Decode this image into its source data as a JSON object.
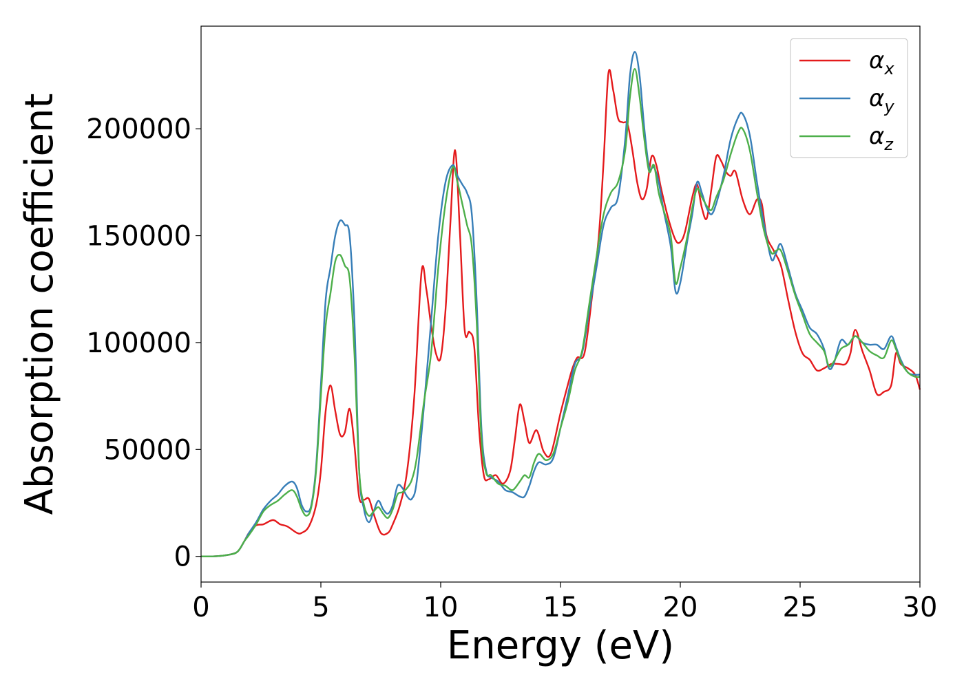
{
  "chart_data": {
    "type": "line",
    "title": "",
    "xlabel": "Energy (eV)",
    "ylabel": "Absorption coefficient",
    "xlim": [
      0,
      30
    ],
    "ylim": [
      -12000,
      248000
    ],
    "xticks": [
      0,
      5,
      10,
      15,
      20,
      25,
      30
    ],
    "yticks": [
      0,
      50000,
      100000,
      150000,
      200000
    ],
    "grid": false,
    "legend_position": "top-right",
    "series": [
      {
        "name": "α",
        "subscript": "x",
        "color": "#e41a1c",
        "x": [
          0,
          0.5,
          1.0,
          1.5,
          1.8,
          2.0,
          2.3,
          2.6,
          3.0,
          3.3,
          3.6,
          4.0,
          4.2,
          4.5,
          4.8,
          5.0,
          5.2,
          5.4,
          5.6,
          5.8,
          6.0,
          6.2,
          6.4,
          6.6,
          6.8,
          7.0,
          7.2,
          7.5,
          7.8,
          8.0,
          8.3,
          8.6,
          8.9,
          9.2,
          9.4,
          9.6,
          9.8,
          10.0,
          10.2,
          10.4,
          10.6,
          10.8,
          11.0,
          11.2,
          11.4,
          11.6,
          11.8,
          12.0,
          12.3,
          12.6,
          12.9,
          13.1,
          13.3,
          13.5,
          13.7,
          14.0,
          14.3,
          14.6,
          15.0,
          15.3,
          15.5,
          15.7,
          16.0,
          16.3,
          16.6,
          16.8,
          17.0,
          17.2,
          17.4,
          17.6,
          17.8,
          18.0,
          18.2,
          18.4,
          18.6,
          18.8,
          19.0,
          19.2,
          19.5,
          19.8,
          20.0,
          20.2,
          20.5,
          20.7,
          20.9,
          21.1,
          21.3,
          21.5,
          21.7,
          21.9,
          22.1,
          22.3,
          22.6,
          22.9,
          23.2,
          23.4,
          23.6,
          23.9,
          24.2,
          24.5,
          24.8,
          25.1,
          25.4,
          25.7,
          26.0,
          26.3,
          26.6,
          26.9,
          27.1,
          27.3,
          27.6,
          27.9,
          28.2,
          28.5,
          28.8,
          29.0,
          29.2,
          29.5,
          29.8,
          30.0
        ],
        "y": [
          0,
          0,
          500,
          2000,
          7000,
          11000,
          14500,
          15000,
          17000,
          15000,
          14000,
          11000,
          11000,
          14000,
          24000,
          40000,
          68000,
          80000,
          68000,
          57000,
          58000,
          69000,
          52000,
          27500,
          26500,
          27000,
          20000,
          11000,
          11000,
          15000,
          24000,
          40000,
          75000,
          133000,
          125000,
          108000,
          95000,
          93000,
          115000,
          155000,
          190000,
          152000,
          106000,
          105000,
          98000,
          60000,
          38000,
          36000,
          38000,
          34000,
          40000,
          55000,
          71000,
          63000,
          53000,
          59000,
          49000,
          48000,
          67000,
          80000,
          88000,
          93000,
          95000,
          120000,
          150000,
          185000,
          226000,
          218000,
          205000,
          203000,
          202000,
          190000,
          175000,
          167000,
          172000,
          187000,
          183000,
          172000,
          158000,
          148000,
          147000,
          152000,
          168000,
          174000,
          163000,
          158000,
          172000,
          187000,
          185000,
          180000,
          178000,
          180000,
          167000,
          160000,
          167000,
          165000,
          150000,
          143000,
          136000,
          120000,
          105000,
          95000,
          92000,
          87000,
          88000,
          90000,
          90000,
          90000,
          95000,
          106000,
          96000,
          87000,
          76000,
          77000,
          80000,
          95000,
          90000,
          88000,
          85000,
          78000
        ]
      },
      {
        "name": "α",
        "subscript": "y",
        "color": "#377eb8",
        "x": [
          0,
          0.5,
          1.0,
          1.5,
          1.8,
          2.0,
          2.3,
          2.6,
          2.9,
          3.2,
          3.5,
          3.8,
          4.0,
          4.2,
          4.4,
          4.6,
          4.8,
          5.0,
          5.2,
          5.4,
          5.6,
          5.8,
          6.0,
          6.2,
          6.4,
          6.6,
          6.8,
          7.0,
          7.2,
          7.4,
          7.6,
          7.8,
          8.0,
          8.2,
          8.4,
          8.6,
          8.8,
          9.0,
          9.3,
          9.6,
          9.9,
          10.2,
          10.5,
          10.7,
          10.9,
          11.1,
          11.3,
          11.5,
          11.7,
          11.9,
          12.1,
          12.4,
          12.7,
          13.0,
          13.3,
          13.5,
          13.7,
          13.9,
          14.1,
          14.4,
          14.7,
          15.0,
          15.3,
          15.6,
          15.9,
          16.2,
          16.5,
          16.8,
          17.1,
          17.4,
          17.7,
          17.9,
          18.1,
          18.3,
          18.5,
          18.7,
          18.9,
          19.1,
          19.3,
          19.6,
          19.8,
          20.0,
          20.3,
          20.5,
          20.7,
          20.9,
          21.1,
          21.3,
          21.5,
          21.8,
          22.1,
          22.4,
          22.6,
          22.9,
          23.2,
          23.5,
          23.8,
          24.0,
          24.2,
          24.5,
          24.8,
          25.1,
          25.4,
          25.7,
          26.0,
          26.2,
          26.4,
          26.7,
          27.0,
          27.3,
          27.6,
          27.9,
          28.2,
          28.5,
          28.8,
          29.0,
          29.2,
          29.5,
          29.8,
          30.0
        ],
        "y": [
          0,
          0,
          500,
          2000,
          7000,
          11000,
          16000,
          22000,
          26000,
          29000,
          33000,
          35000,
          32000,
          24000,
          21000,
          24000,
          42000,
          80000,
          120000,
          135000,
          150000,
          157000,
          155000,
          150000,
          110000,
          40000,
          22000,
          16000,
          21000,
          26000,
          22000,
          20000,
          24000,
          33000,
          32000,
          28000,
          27000,
          35000,
          70000,
          110000,
          150000,
          175000,
          183000,
          178000,
          174000,
          170000,
          160000,
          120000,
          60000,
          40000,
          37000,
          35000,
          31000,
          30000,
          28000,
          28000,
          33000,
          40000,
          44000,
          43000,
          46000,
          60000,
          75000,
          90000,
          95000,
          115000,
          135000,
          155000,
          163000,
          168000,
          195000,
          225000,
          236000,
          225000,
          200000,
          182000,
          182000,
          175000,
          162000,
          145000,
          124000,
          128000,
          148000,
          160000,
          175000,
          170000,
          163000,
          160000,
          165000,
          178000,
          195000,
          205000,
          207000,
          197000,
          175000,
          155000,
          139000,
          142000,
          146000,
          135000,
          123000,
          115000,
          107000,
          104000,
          97000,
          88000,
          90000,
          101000,
          99000,
          103000,
          100000,
          99000,
          99000,
          97000,
          103000,
          98000,
          92000,
          86000,
          85000,
          85000
        ]
      },
      {
        "name": "α",
        "subscript": "z",
        "color": "#4daf4a",
        "x": [
          0,
          0.5,
          1.0,
          1.5,
          1.8,
          2.0,
          2.3,
          2.6,
          2.9,
          3.2,
          3.5,
          3.8,
          4.0,
          4.2,
          4.4,
          4.6,
          4.8,
          5.0,
          5.2,
          5.4,
          5.6,
          5.8,
          6.0,
          6.2,
          6.4,
          6.6,
          6.8,
          7.0,
          7.2,
          7.4,
          7.6,
          7.8,
          8.0,
          8.2,
          8.4,
          8.6,
          8.8,
          9.0,
          9.3,
          9.6,
          9.9,
          10.2,
          10.5,
          10.7,
          10.9,
          11.1,
          11.3,
          11.5,
          11.7,
          11.9,
          12.1,
          12.4,
          12.7,
          13.0,
          13.3,
          13.5,
          13.7,
          13.9,
          14.1,
          14.4,
          14.7,
          15.0,
          15.3,
          15.6,
          15.9,
          16.2,
          16.5,
          16.8,
          17.1,
          17.4,
          17.7,
          17.9,
          18.1,
          18.3,
          18.5,
          18.7,
          18.9,
          19.1,
          19.3,
          19.6,
          19.8,
          20.0,
          20.3,
          20.5,
          20.7,
          20.9,
          21.1,
          21.3,
          21.5,
          21.8,
          22.1,
          22.4,
          22.6,
          22.9,
          23.2,
          23.5,
          23.8,
          24.0,
          24.2,
          24.5,
          24.8,
          25.1,
          25.4,
          25.7,
          26.0,
          26.2,
          26.4,
          26.7,
          27.0,
          27.3,
          27.6,
          27.9,
          28.2,
          28.5,
          28.8,
          29.0,
          29.2,
          29.5,
          29.8,
          30.0
        ],
        "y": [
          0,
          0,
          500,
          2000,
          7000,
          10000,
          15000,
          21000,
          24000,
          26000,
          29000,
          31000,
          28000,
          22000,
          19000,
          23000,
          40000,
          75000,
          108000,
          123000,
          138000,
          141000,
          136000,
          130000,
          95000,
          40000,
          24000,
          19000,
          21000,
          23000,
          20000,
          18000,
          22000,
          29000,
          30000,
          32000,
          36000,
          46000,
          72000,
          95000,
          135000,
          165000,
          182000,
          175000,
          165000,
          155000,
          145000,
          110000,
          55000,
          39000,
          38000,
          34000,
          33000,
          31000,
          35000,
          38000,
          37000,
          44000,
          48000,
          45000,
          48000,
          60000,
          72000,
          87000,
          96000,
          118000,
          140000,
          160000,
          170000,
          175000,
          190000,
          215000,
          228000,
          215000,
          195000,
          180000,
          183000,
          170000,
          162000,
          150000,
          128000,
          135000,
          150000,
          163000,
          172000,
          168000,
          164000,
          162000,
          168000,
          176000,
          188000,
          198000,
          200000,
          190000,
          170000,
          152000,
          142000,
          143000,
          143000,
          133000,
          122000,
          113000,
          104000,
          100000,
          96000,
          89000,
          91000,
          97000,
          99000,
          103000,
          100000,
          96000,
          94000,
          93000,
          101000,
          97000,
          91000,
          86000,
          84000,
          84000
        ]
      }
    ]
  }
}
